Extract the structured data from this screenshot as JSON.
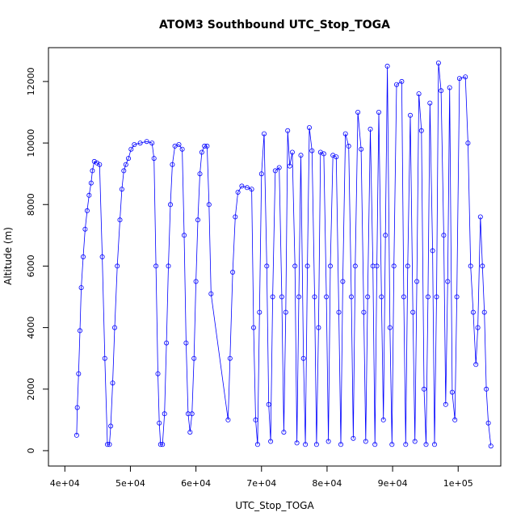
{
  "chart_data": {
    "type": "scatter",
    "title": "ATOM3 Southbound UTC_Stop_TOGA",
    "xlabel": "UTC_Stop_TOGA",
    "ylabel": "Altitude (m)",
    "xlim": [
      37500,
      106500
    ],
    "ylim": [
      -500,
      13100
    ],
    "x_ticks": [
      40000,
      50000,
      60000,
      70000,
      80000,
      90000,
      100000
    ],
    "x_tick_labels": [
      "4e+04",
      "5e+04",
      "6e+04",
      "7e+04",
      "8e+04",
      "9e+04",
      "1e+05"
    ],
    "y_ticks": [
      0,
      2000,
      4000,
      6000,
      8000,
      10000,
      12000
    ],
    "y_tick_labels": [
      "0",
      "2000",
      "4000",
      "6000",
      "8000",
      "10000",
      "12000"
    ],
    "style": {
      "color": "#0000ff",
      "marker": "open-circle",
      "connected": true
    },
    "series": [
      {
        "name": "Altitude",
        "points": [
          [
            41800,
            500
          ],
          [
            41900,
            1400
          ],
          [
            42100,
            2500
          ],
          [
            42300,
            3900
          ],
          [
            42500,
            5300
          ],
          [
            42800,
            6300
          ],
          [
            43100,
            7200
          ],
          [
            43400,
            7800
          ],
          [
            43700,
            8300
          ],
          [
            44000,
            8700
          ],
          [
            44200,
            9100
          ],
          [
            44500,
            9400
          ],
          [
            44900,
            9350
          ],
          [
            45300,
            9300
          ],
          [
            45700,
            6300
          ],
          [
            46100,
            3000
          ],
          [
            46500,
            200
          ],
          [
            46800,
            200
          ],
          [
            47000,
            800
          ],
          [
            47300,
            2200
          ],
          [
            47600,
            4000
          ],
          [
            48000,
            6000
          ],
          [
            48400,
            7500
          ],
          [
            48700,
            8500
          ],
          [
            49000,
            9100
          ],
          [
            49300,
            9300
          ],
          [
            49700,
            9500
          ],
          [
            50100,
            9800
          ],
          [
            50600,
            9950
          ],
          [
            51500,
            10000
          ],
          [
            52500,
            10050
          ],
          [
            53300,
            10000
          ],
          [
            53600,
            9500
          ],
          [
            53900,
            6000
          ],
          [
            54200,
            2500
          ],
          [
            54400,
            900
          ],
          [
            54600,
            200
          ],
          [
            54900,
            200
          ],
          [
            55200,
            1200
          ],
          [
            55500,
            3500
          ],
          [
            55800,
            6000
          ],
          [
            56100,
            8000
          ],
          [
            56400,
            9300
          ],
          [
            56800,
            9900
          ],
          [
            57400,
            9950
          ],
          [
            57900,
            9800
          ],
          [
            58200,
            7000
          ],
          [
            58500,
            3500
          ],
          [
            58800,
            1200
          ],
          [
            59100,
            600
          ],
          [
            59400,
            1200
          ],
          [
            59700,
            3000
          ],
          [
            60000,
            5500
          ],
          [
            60300,
            7500
          ],
          [
            60600,
            9000
          ],
          [
            60900,
            9700
          ],
          [
            61300,
            9900
          ],
          [
            61700,
            9900
          ],
          [
            62000,
            8000
          ],
          [
            62300,
            5100
          ],
          [
            64900,
            1000
          ],
          [
            65200,
            3000
          ],
          [
            65600,
            5800
          ],
          [
            66000,
            7600
          ],
          [
            66400,
            8400
          ],
          [
            67000,
            8600
          ],
          [
            67800,
            8550
          ],
          [
            68500,
            8500
          ],
          [
            68800,
            4000
          ],
          [
            69100,
            1000
          ],
          [
            69400,
            200
          ],
          [
            69700,
            4500
          ],
          [
            70000,
            9000
          ],
          [
            70400,
            10300
          ],
          [
            70800,
            6000
          ],
          [
            71100,
            1500
          ],
          [
            71400,
            300
          ],
          [
            71700,
            5000
          ],
          [
            72100,
            9100
          ],
          [
            72700,
            9200
          ],
          [
            73100,
            5000
          ],
          [
            73400,
            600
          ],
          [
            73700,
            4500
          ],
          [
            74000,
            10400
          ],
          [
            74300,
            9250
          ],
          [
            74700,
            9700
          ],
          [
            75100,
            6000
          ],
          [
            75400,
            250
          ],
          [
            75700,
            5000
          ],
          [
            76000,
            9600
          ],
          [
            76400,
            3000
          ],
          [
            76700,
            200
          ],
          [
            77000,
            6000
          ],
          [
            77300,
            10500
          ],
          [
            77700,
            9750
          ],
          [
            78100,
            5000
          ],
          [
            78400,
            200
          ],
          [
            78700,
            4000
          ],
          [
            79000,
            9700
          ],
          [
            79500,
            9650
          ],
          [
            79900,
            5000
          ],
          [
            80200,
            300
          ],
          [
            80500,
            6000
          ],
          [
            80900,
            9600
          ],
          [
            81400,
            9550
          ],
          [
            81800,
            4500
          ],
          [
            82100,
            200
          ],
          [
            82400,
            5500
          ],
          [
            82800,
            10300
          ],
          [
            83300,
            9900
          ],
          [
            83700,
            5000
          ],
          [
            84000,
            400
          ],
          [
            84300,
            6000
          ],
          [
            84700,
            11000
          ],
          [
            85200,
            9800
          ],
          [
            85600,
            4500
          ],
          [
            85900,
            300
          ],
          [
            86200,
            5000
          ],
          [
            86600,
            10450
          ],
          [
            87000,
            6000
          ],
          [
            87300,
            200
          ],
          [
            87600,
            6000
          ],
          [
            87900,
            11000
          ],
          [
            88300,
            5000
          ],
          [
            88600,
            1000
          ],
          [
            88900,
            7000
          ],
          [
            89200,
            12500
          ],
          [
            89600,
            4000
          ],
          [
            89900,
            200
          ],
          [
            90200,
            6000
          ],
          [
            90600,
            11900
          ],
          [
            91400,
            12000
          ],
          [
            91700,
            5000
          ],
          [
            92000,
            200
          ],
          [
            92300,
            6000
          ],
          [
            92700,
            10900
          ],
          [
            93100,
            4500
          ],
          [
            93400,
            300
          ],
          [
            93700,
            5500
          ],
          [
            94000,
            11600
          ],
          [
            94400,
            10400
          ],
          [
            94800,
            2000
          ],
          [
            95100,
            200
          ],
          [
            95400,
            5000
          ],
          [
            95700,
            11300
          ],
          [
            96100,
            6500
          ],
          [
            96400,
            200
          ],
          [
            96700,
            5000
          ],
          [
            97000,
            12600
          ],
          [
            97400,
            11700
          ],
          [
            97800,
            7000
          ],
          [
            98100,
            1500
          ],
          [
            98400,
            5500
          ],
          [
            98700,
            11800
          ],
          [
            99100,
            1900
          ],
          [
            99500,
            1000
          ],
          [
            99800,
            5000
          ],
          [
            100200,
            12100
          ],
          [
            101100,
            12150
          ],
          [
            101500,
            10000
          ],
          [
            101900,
            6000
          ],
          [
            102300,
            4500
          ],
          [
            102700,
            2800
          ],
          [
            103000,
            4000
          ],
          [
            103400,
            7600
          ],
          [
            103700,
            6000
          ],
          [
            104000,
            4500
          ],
          [
            104300,
            2000
          ],
          [
            104600,
            900
          ],
          [
            105000,
            150
          ]
        ]
      }
    ]
  }
}
